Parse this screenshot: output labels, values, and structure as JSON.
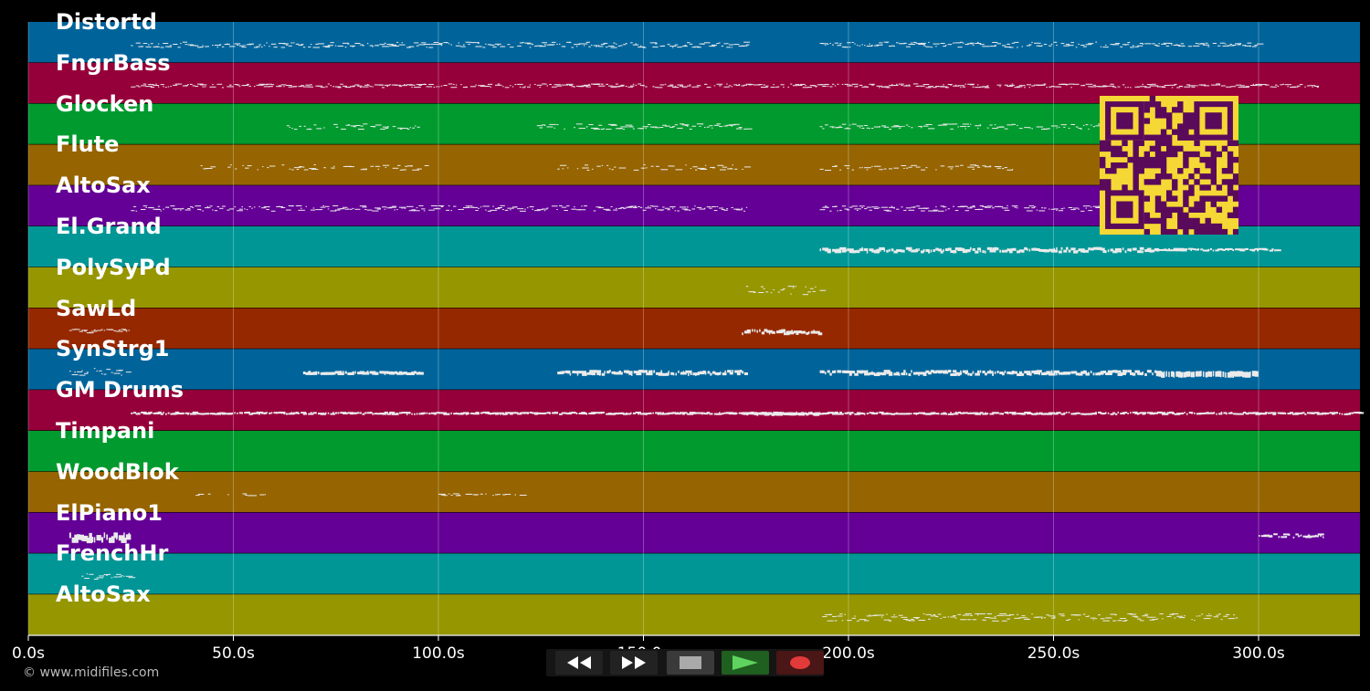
{
  "tracks": [
    {
      "name": "Distortd",
      "color": "#00649a"
    },
    {
      "name": "FngrBass",
      "color": "#96003a"
    },
    {
      "name": "Glocken",
      "color": "#009a2e"
    },
    {
      "name": "Flute",
      "color": "#966400"
    },
    {
      "name": "AltoSax",
      "color": "#640096"
    },
    {
      "name": "El.Grand",
      "color": "#009696"
    },
    {
      "name": "PolySyPd",
      "color": "#969600"
    },
    {
      "name": "SawLd",
      "color": "#962800"
    },
    {
      "name": "SynStrg1",
      "color": "#00649a"
    },
    {
      "name": "GM Drums",
      "color": "#96003a"
    },
    {
      "name": "Timpani",
      "color": "#009a2e"
    },
    {
      "name": "WoodBlok",
      "color": "#966400"
    },
    {
      "name": "ElPiano1",
      "color": "#640096"
    },
    {
      "name": "FrenchHr",
      "color": "#009696"
    },
    {
      "name": "AltoSax",
      "color": "#969600"
    }
  ],
  "timeline": {
    "ticks": [
      "0.0s",
      "50.0s",
      "100.0s",
      "150.0s",
      "200.0s",
      "250.0s",
      "300.0s"
    ],
    "max_seconds": 325
  },
  "transport": {
    "buttons": [
      {
        "name": "rewind-button",
        "icon": "rewind-icon",
        "color": "#222222"
      },
      {
        "name": "fast-forward-button",
        "icon": "fast-forward-icon",
        "color": "#222222"
      },
      {
        "name": "stop-button",
        "icon": "stop-icon",
        "color": "#3a3a3a"
      },
      {
        "name": "play-button",
        "icon": "play-icon",
        "color": "#1f5f1f"
      },
      {
        "name": "record-button",
        "icon": "record-icon",
        "color": "#4a1616"
      }
    ]
  },
  "copyright": "© www.midifiles.com",
  "qr_code": {
    "icon": "qr-code-icon",
    "fg": "#5a0a5a",
    "bg": "#f5d835"
  }
}
